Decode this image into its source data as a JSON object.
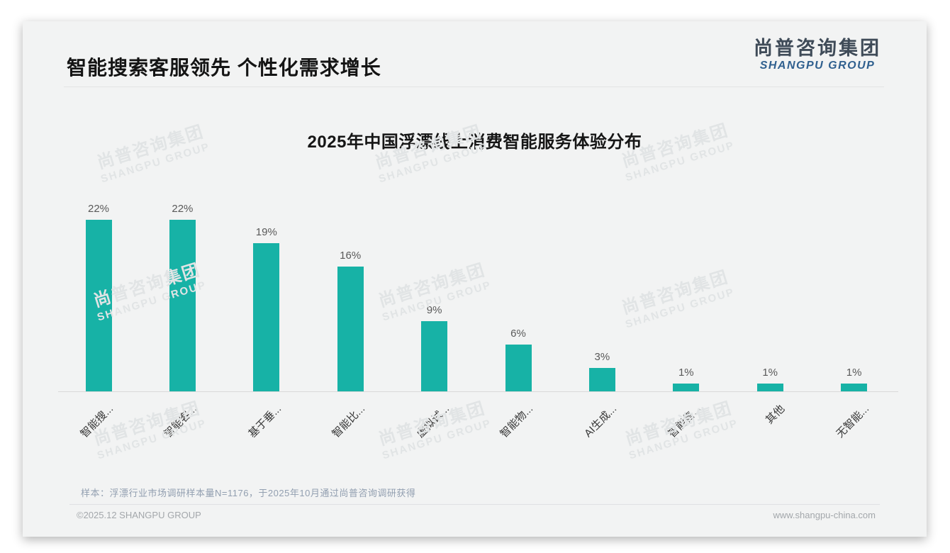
{
  "header": {
    "title": "智能搜索客服领先 个性化需求增长"
  },
  "logo": {
    "zh": "尚普咨询集团",
    "en": "SHANGPU GROUP"
  },
  "watermark": {
    "zh": "尚普咨询集团",
    "en": "SHANGPU GROUP"
  },
  "chart_data": {
    "type": "bar",
    "title": "2025年中国浮漂线上消费智能服务体验分布",
    "categories": [
      "智能搜...",
      "智能客...",
      "基于垂...",
      "智能比...",
      "虚拟试...",
      "智能物...",
      "AI生成...",
      "智能售...",
      "其他",
      "无智能..."
    ],
    "values": [
      22,
      22,
      19,
      16,
      9,
      6,
      3,
      1,
      1,
      1
    ],
    "value_labels": [
      "22%",
      "22%",
      "19%",
      "16%",
      "9%",
      "6%",
      "3%",
      "1%",
      "1%",
      "1%"
    ],
    "bar_color": "#17B2A6",
    "value_label_color": "#595959",
    "axis_line_color": "#d9d9d9",
    "ylim": [
      0,
      24
    ],
    "grid": false,
    "legend": false,
    "x_label_rotation": -45
  },
  "note": "样本：浮漂行业市场调研样本量N=1176，于2025年10月通过尚普咨询调研获得",
  "footer": {
    "left": "©2025.12 SHANGPU GROUP",
    "right": "www.shangpu-china.com"
  }
}
